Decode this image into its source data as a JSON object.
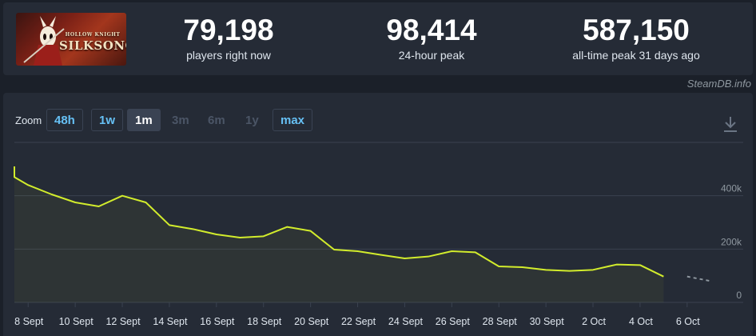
{
  "header": {
    "logo": {
      "line1": "HOLLOW KNIGHT",
      "line2": "SILKSONG"
    },
    "stats": [
      {
        "value": "79,198",
        "label": "players right now"
      },
      {
        "value": "98,414",
        "label": "24-hour peak"
      },
      {
        "value": "587,150",
        "label": "all-time peak 31 days ago"
      }
    ]
  },
  "brand": "SteamDB.info",
  "zoom": {
    "label": "Zoom",
    "options": [
      {
        "label": "48h",
        "state": "avail"
      },
      {
        "label": "1w",
        "state": "avail"
      },
      {
        "label": "1m",
        "state": "active"
      },
      {
        "label": "3m",
        "state": "disabled"
      },
      {
        "label": "6m",
        "state": "disabled"
      },
      {
        "label": "1y",
        "state": "disabled"
      },
      {
        "label": "max",
        "state": "avail"
      }
    ]
  },
  "colors": {
    "line": "#d2ec2c",
    "forecast": "#8f98a0",
    "grid": "#3a4250",
    "tick": "#dfe6ee",
    "ytick": "#8f98a0"
  },
  "chart_data": {
    "type": "line",
    "xlabel": "",
    "ylabel": "",
    "ylim": [
      0,
      600000
    ],
    "grid": true,
    "legend": "none",
    "x_tick_labels": [
      "8 Sept",
      "10 Sept",
      "12 Sept",
      "14 Sept",
      "16 Sept",
      "18 Sept",
      "20 Sept",
      "22 Sept",
      "24 Sept",
      "26 Sept",
      "28 Sept",
      "30 Sept",
      "2 Oct",
      "4 Oct",
      "6 Oct"
    ],
    "y_ticks": [
      {
        "value": 0,
        "label": "0"
      },
      {
        "value": 200000,
        "label": "200k"
      },
      {
        "value": 400000,
        "label": "400k"
      }
    ],
    "series": [
      {
        "x": [
          "7 Sept",
          "7.5 Sept",
          "8.5 Sept",
          "9.5 Sept",
          "10.5 Sept",
          "11.5 Sept",
          "12.5 Sept",
          "13.5 Sept",
          "14.5 Sept",
          "15.5 Sept",
          "16.5 Sept",
          "17.5 Sept",
          "18.5 Sept",
          "19.5 Sept",
          "20.5 Sept",
          "21.5 Sept",
          "22.5 Sept",
          "23.5 Sept",
          "24.5 Sept",
          "25.5 Sept",
          "26.5 Sept",
          "27.5 Sept",
          "28.5 Sept",
          "29.5 Sept",
          "30.5 Sept",
          "1.5 Oct",
          "2.5 Oct",
          "3.5 Oct",
          "4.5 Oct",
          "5.5 Oct",
          "6.5 Oct"
        ],
        "xd": [
          -0.6,
          -0.4,
          0.5,
          1.5,
          2.5,
          3.5,
          4.5,
          5.5,
          6.5,
          7.5,
          8.5,
          9.5,
          10.5,
          11.5,
          12.5,
          13.5,
          14.5,
          15.5,
          16.5,
          17.5,
          18.5,
          19.5,
          20.5,
          21.5,
          22.5,
          23.5,
          24.5,
          25.5,
          26.5,
          27.5,
          28.5
        ],
        "values": [
          510000,
          470000,
          440000,
          405000,
          375000,
          360000,
          400000,
          375000,
          290000,
          275000,
          255000,
          243000,
          248000,
          283000,
          268000,
          198000,
          192000,
          178000,
          165000,
          172000,
          192000,
          188000,
          135000,
          132000,
          122000,
          118000,
          122000,
          142000,
          140000,
          97000,
          80000
        ]
      }
    ],
    "forecast_from_index": 29,
    "forecast": {
      "xd": [
        28.5,
        29.5
      ],
      "values": [
        97000,
        80000
      ]
    }
  }
}
